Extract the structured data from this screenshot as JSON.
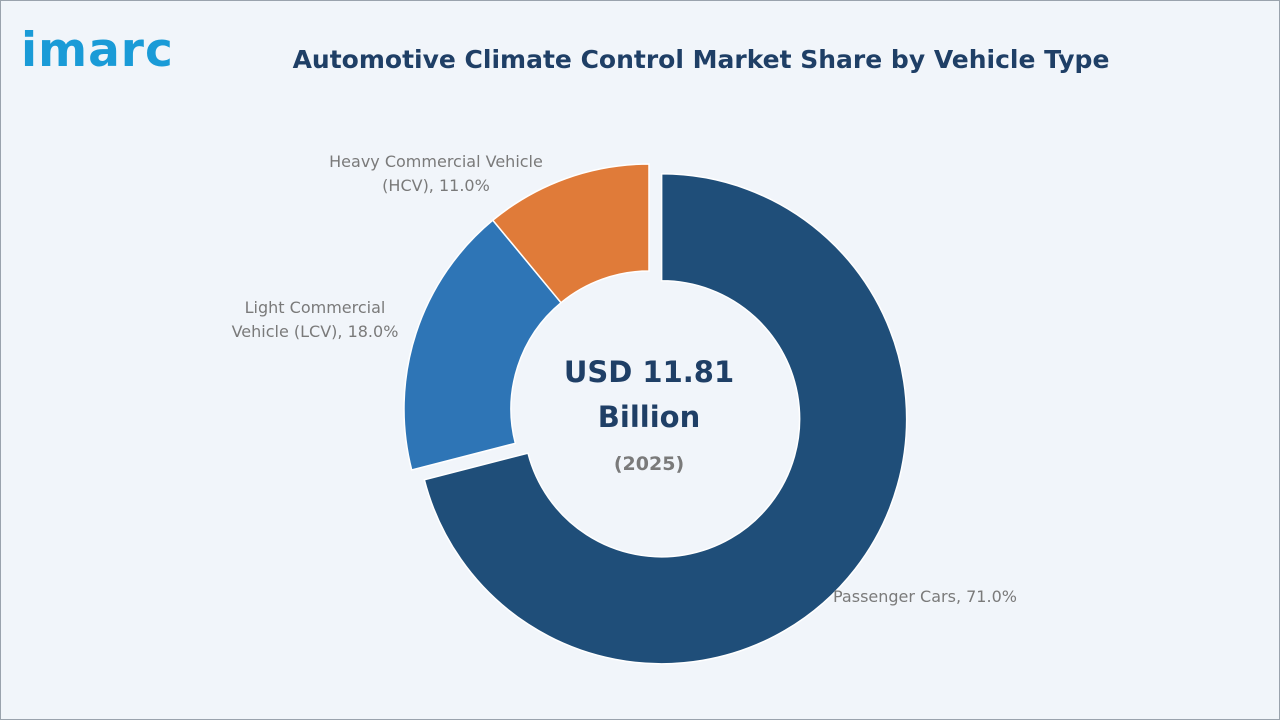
{
  "brand": {
    "logo_text": "imarc",
    "logo_color": "#1a9bd7"
  },
  "header": {
    "title": "Automotive Climate Control Market Share by Vehicle Type",
    "title_color": "#1f3f66"
  },
  "chart_data": {
    "type": "pie",
    "variant": "donut",
    "title": "Automotive Climate Control Market Share by Vehicle Type",
    "start_angle_deg": 0,
    "direction": "clockwise",
    "exploded": [
      "Passenger Cars"
    ],
    "label_color": "#7a7a7a",
    "slices": [
      {
        "name": "Passenger Cars",
        "value": 71.0,
        "color": "#1f4e79",
        "label_lines": [
          "Passenger Cars, 71.0%"
        ]
      },
      {
        "name": "Light Commercial Vehicle (LCV)",
        "value": 18.0,
        "color": "#2e75b6",
        "label_lines": [
          "Light Commercial",
          "Vehicle (LCV), 18.0%"
        ]
      },
      {
        "name": "Heavy Commercial Vehicle (HCV)",
        "value": 11.0,
        "color": "#e07b39",
        "label_lines": [
          "Heavy Commercial Vehicle",
          "(HCV), 11.0%"
        ]
      }
    ],
    "center_label": {
      "value_line1": "USD 11.81",
      "value_line2": "Billion",
      "year": "(2025)",
      "value_color": "#1f3f66",
      "year_color": "#7a7a7a"
    }
  }
}
